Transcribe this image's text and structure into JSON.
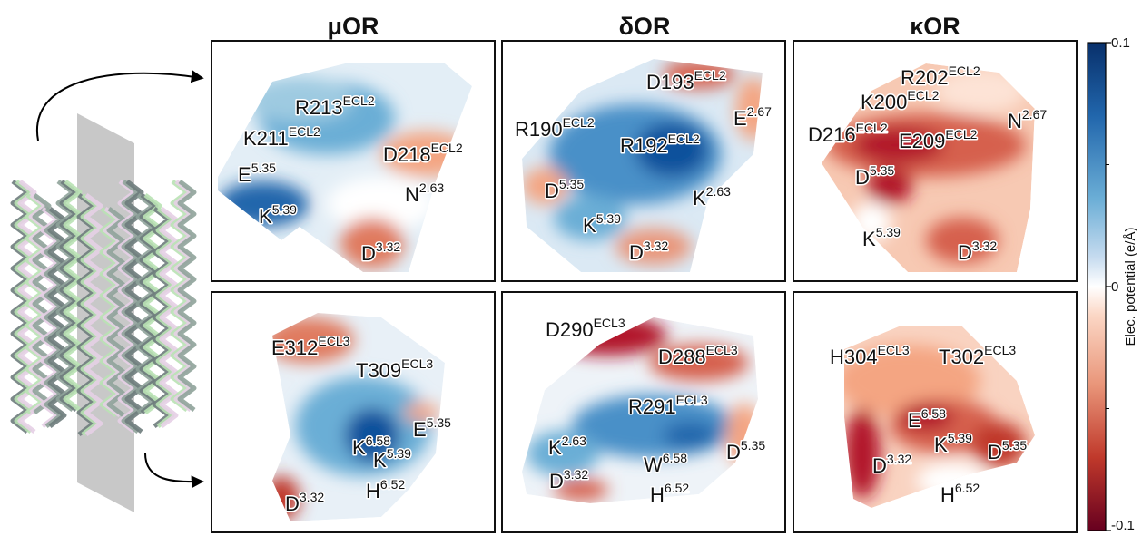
{
  "column_titles": [
    "μOR",
    "δOR",
    "κOR"
  ],
  "panels": [
    {
      "labels": [
        {
          "res": "R213",
          "sup": "ECL2"
        },
        {
          "res": "K211",
          "sup": "ECL2"
        },
        {
          "res": "D218",
          "sup": "ECL2"
        },
        {
          "res": "E",
          "sup": "5.35"
        },
        {
          "res": "N",
          "sup": "2.63"
        },
        {
          "res": "K",
          "sup": "5.39"
        },
        {
          "res": "D",
          "sup": "3.32"
        }
      ]
    },
    {
      "labels": [
        {
          "res": "D193",
          "sup": "ECL2"
        },
        {
          "res": "R190",
          "sup": "ECL2"
        },
        {
          "res": "E",
          "sup": "2.67"
        },
        {
          "res": "R192",
          "sup": "ECL2"
        },
        {
          "res": "D",
          "sup": "5.35"
        },
        {
          "res": "K",
          "sup": "2.63"
        },
        {
          "res": "K",
          "sup": "5.39"
        },
        {
          "res": "D",
          "sup": "3.32"
        }
      ]
    },
    {
      "labels": [
        {
          "res": "R202",
          "sup": "ECL2"
        },
        {
          "res": "K200",
          "sup": "ECL2"
        },
        {
          "res": "N",
          "sup": "2.67"
        },
        {
          "res": "D216",
          "sup": "ECL2"
        },
        {
          "res": "E209",
          "sup": "ECL2"
        },
        {
          "res": "D",
          "sup": "5.35"
        },
        {
          "res": "K",
          "sup": "5.39"
        },
        {
          "res": "D",
          "sup": "3.32"
        }
      ]
    },
    {
      "labels": [
        {
          "res": "E312",
          "sup": "ECL3"
        },
        {
          "res": "T309",
          "sup": "ECL3"
        },
        {
          "res": "K",
          "sup": "6.58"
        },
        {
          "res": "E",
          "sup": "5.35"
        },
        {
          "res": "K",
          "sup": "5.39"
        },
        {
          "res": "H",
          "sup": "6.52"
        },
        {
          "res": "D",
          "sup": "3.32"
        }
      ]
    },
    {
      "labels": [
        {
          "res": "D290",
          "sup": "ECL3"
        },
        {
          "res": "D288",
          "sup": "ECL3"
        },
        {
          "res": "R291",
          "sup": "ECL3"
        },
        {
          "res": "K",
          "sup": "2.63"
        },
        {
          "res": "D",
          "sup": "5.35"
        },
        {
          "res": "W",
          "sup": "6.58"
        },
        {
          "res": "D",
          "sup": "3.32"
        },
        {
          "res": "H",
          "sup": "6.52"
        }
      ]
    },
    {
      "labels": [
        {
          "res": "H304",
          "sup": "ECL3"
        },
        {
          "res": "T302",
          "sup": "ECL3"
        },
        {
          "res": "E",
          "sup": "6.58"
        },
        {
          "res": "K",
          "sup": "5.39"
        },
        {
          "res": "D",
          "sup": "5.35"
        },
        {
          "res": "D",
          "sup": "3.32"
        },
        {
          "res": "H",
          "sup": "6.52"
        }
      ]
    }
  ],
  "colorbar": {
    "label": "Elec. potential (e/Å)",
    "lim": [
      -0.1,
      0.1
    ],
    "ticks": [
      0.1,
      0,
      -0.1
    ]
  }
}
